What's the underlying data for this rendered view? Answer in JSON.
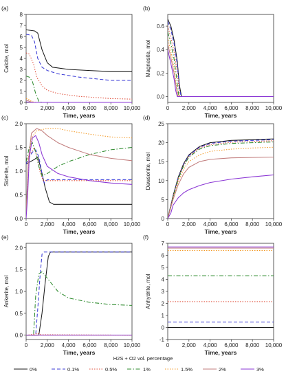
{
  "legend": {
    "title": "H2S + O2 vol. percentage",
    "placement": "bottom-center",
    "entries": [
      {
        "label": "0%",
        "color": "#1a1a1a",
        "dash": "solid"
      },
      {
        "label": "0.1%",
        "color": "#3a3ad6",
        "dash": "dash"
      },
      {
        "label": "0.5%",
        "color": "#e0503c",
        "dash": "dot"
      },
      {
        "label": "1%",
        "color": "#2e8b2e",
        "dash": "dashdot"
      },
      {
        "label": "1.5%",
        "color": "#f39a26",
        "dash": "dot"
      },
      {
        "label": "2%",
        "color": "#c27e7e",
        "dash": "solid"
      },
      {
        "label": "3%",
        "color": "#8a35d4",
        "dash": "solid"
      }
    ]
  },
  "chart_data": [
    {
      "type": "line",
      "panel": "(a)",
      "xlabel": "Time, years",
      "ylabel": "Calcite, mol",
      "xlim": [
        0,
        10000
      ],
      "ylim": [
        0,
        8
      ],
      "yticks": [
        0,
        1,
        2,
        3,
        4,
        5,
        6,
        7,
        8
      ],
      "xticks": [
        0,
        2000,
        4000,
        6000,
        8000,
        10000
      ],
      "xtick_labels": [
        "0",
        "2,000",
        "4,000",
        "6,000",
        "8,000",
        "10,000"
      ],
      "series": [
        {
          "name": "0%",
          "x": [
            0,
            800,
            1100,
            1500,
            2000,
            2500,
            4000,
            6000,
            8000,
            10000
          ],
          "y": [
            6.6,
            6.5,
            6.3,
            4.8,
            3.6,
            3.2,
            3.0,
            2.9,
            2.8,
            2.8
          ]
        },
        {
          "name": "0.1%",
          "x": [
            0,
            500,
            800,
            1100,
            1500,
            2000,
            3000,
            5000,
            8000,
            10000
          ],
          "y": [
            6.2,
            6.1,
            5.5,
            4.0,
            3.2,
            2.9,
            2.6,
            2.3,
            2.0,
            2.0
          ]
        },
        {
          "name": "0.5%",
          "x": [
            0,
            300,
            700,
            1000,
            1500,
            2000,
            3000,
            5000,
            8000,
            10000
          ],
          "y": [
            4.5,
            4.4,
            3.5,
            2.3,
            1.5,
            1.1,
            0.8,
            0.55,
            0.35,
            0.3
          ]
        },
        {
          "name": "1%",
          "x": [
            0,
            300,
            600,
            900,
            1200,
            1500,
            2000,
            10000
          ],
          "y": [
            2.4,
            2.3,
            1.9,
            0.8,
            0.1,
            0.0,
            0.0,
            0.0
          ]
        },
        {
          "name": "1.5%",
          "x": [
            0,
            200,
            400,
            700,
            1000,
            10000
          ],
          "y": [
            0.35,
            0.3,
            0.15,
            0.03,
            0.0,
            0.0
          ]
        },
        {
          "name": "2%",
          "x": [
            0,
            200,
            400,
            700,
            10000
          ],
          "y": [
            0.2,
            0.15,
            0.05,
            0.0,
            0.0
          ]
        },
        {
          "name": "3%",
          "x": [
            0,
            200,
            500,
            10000
          ],
          "y": [
            0.05,
            0.03,
            0.0,
            0.0
          ]
        }
      ]
    },
    {
      "type": "line",
      "panel": "(b)",
      "xlabel": "Time, years",
      "ylabel": "Magnesite, mol",
      "xlim": [
        0,
        10000
      ],
      "ylim": [
        -0.05,
        0.7
      ],
      "yticks": [
        0,
        0.2,
        0.4,
        0.6
      ],
      "ytick_labels": [
        "0.0",
        "0.2",
        "0.4",
        "0.6"
      ],
      "xticks": [
        0,
        2000,
        4000,
        6000,
        8000,
        10000
      ],
      "xtick_labels": [
        "0",
        "2,000",
        "4,000",
        "6,000",
        "8,000",
        "10,000"
      ],
      "series": [
        {
          "name": "0%",
          "x": [
            0,
            300,
            600,
            900,
            1100,
            1300,
            10000
          ],
          "y": [
            0.66,
            0.6,
            0.48,
            0.3,
            0.1,
            0.0,
            0.0
          ]
        },
        {
          "name": "0.1%",
          "x": [
            0,
            300,
            600,
            900,
            1100,
            1250,
            10000
          ],
          "y": [
            0.64,
            0.57,
            0.45,
            0.27,
            0.08,
            0.0,
            0.0
          ]
        },
        {
          "name": "0.5%",
          "x": [
            0,
            300,
            600,
            900,
            1150,
            10000
          ],
          "y": [
            0.6,
            0.5,
            0.38,
            0.2,
            0.0,
            0.0
          ]
        },
        {
          "name": "1%",
          "x": [
            0,
            300,
            600,
            850,
            1050,
            10000
          ],
          "y": [
            0.55,
            0.45,
            0.32,
            0.15,
            0.0,
            0.0
          ]
        },
        {
          "name": "1.5%",
          "x": [
            0,
            300,
            600,
            800,
            1000,
            10000
          ],
          "y": [
            0.5,
            0.38,
            0.25,
            0.1,
            0.0,
            0.0
          ]
        },
        {
          "name": "2%",
          "x": [
            0,
            300,
            600,
            800,
            950,
            10000
          ],
          "y": [
            0.45,
            0.33,
            0.2,
            0.08,
            0.0,
            0.0
          ]
        },
        {
          "name": "3%",
          "x": [
            0,
            300,
            600,
            750,
            900,
            10000
          ],
          "y": [
            0.4,
            0.28,
            0.15,
            0.05,
            0.0,
            0.0
          ]
        }
      ]
    },
    {
      "type": "line",
      "panel": "(c)",
      "xlabel": "Time, years",
      "ylabel": "Siderite, mol",
      "xlim": [
        0,
        10000
      ],
      "ylim": [
        0,
        2.0
      ],
      "yticks": [
        0,
        0.5,
        1.0,
        1.5,
        2.0
      ],
      "ytick_labels": [
        "0.0",
        "0.5",
        "1.0",
        "1.5",
        "2.0"
      ],
      "xticks": [
        0,
        2000,
        4000,
        6000,
        8000,
        10000
      ],
      "xtick_labels": [
        "0",
        "2,000",
        "4,000",
        "6,000",
        "8,000",
        "10,000"
      ],
      "series": [
        {
          "name": "0%",
          "x": [
            0,
            400,
            800,
            1100,
            1400,
            1800,
            2200,
            2600,
            4000,
            6000,
            8000,
            10000
          ],
          "y": [
            1.15,
            1.2,
            1.25,
            1.3,
            1.05,
            0.65,
            0.35,
            0.3,
            0.3,
            0.3,
            0.3,
            0.3
          ]
        },
        {
          "name": "0.1%",
          "x": [
            0,
            300,
            600,
            900,
            1200,
            1500,
            1700,
            2000,
            3000,
            5000,
            8000,
            10000
          ],
          "y": [
            1.15,
            1.3,
            1.4,
            1.45,
            1.3,
            0.95,
            0.75,
            0.82,
            0.82,
            0.82,
            0.82,
            0.82
          ]
        },
        {
          "name": "0.5%",
          "x": [
            0,
            200,
            500,
            800,
            1000,
            1300,
            1600,
            2000,
            10000
          ],
          "y": [
            1.2,
            1.3,
            1.4,
            1.5,
            1.3,
            1.0,
            0.8,
            0.8,
            0.8
          ]
        },
        {
          "name": "1%",
          "x": [
            0,
            300,
            600,
            900,
            1200,
            1500,
            2000,
            3000,
            4000,
            6000,
            8000,
            10000
          ],
          "y": [
            1.2,
            1.5,
            1.6,
            1.4,
            1.1,
            0.9,
            0.95,
            1.1,
            1.2,
            1.35,
            1.45,
            1.5
          ]
        },
        {
          "name": "1.5%",
          "x": [
            0,
            200,
            500,
            1000,
            2000,
            3000,
            4000,
            6000,
            8000,
            10000
          ],
          "y": [
            0.1,
            1.0,
            1.7,
            1.85,
            1.9,
            1.9,
            1.85,
            1.78,
            1.72,
            1.7
          ]
        },
        {
          "name": "2%",
          "x": [
            0,
            200,
            500,
            1000,
            1500,
            2000,
            3000,
            4000,
            6000,
            8000,
            10000
          ],
          "y": [
            0.1,
            1.2,
            1.8,
            1.9,
            1.85,
            1.75,
            1.6,
            1.5,
            1.35,
            1.27,
            1.22
          ]
        },
        {
          "name": "3%",
          "x": [
            0,
            150,
            300,
            600,
            900,
            1200,
            1500,
            2000,
            3000,
            4000,
            6000,
            8000,
            10000
          ],
          "y": [
            0.0,
            0.5,
            1.3,
            1.7,
            1.75,
            1.6,
            1.35,
            1.1,
            0.95,
            0.88,
            0.8,
            0.75,
            0.72
          ]
        }
      ]
    },
    {
      "type": "line",
      "panel": "(d)",
      "xlabel": "Time, years",
      "ylabel": "Dawsonite, mol",
      "xlim": [
        0,
        10000
      ],
      "ylim": [
        0,
        25
      ],
      "yticks": [
        0,
        5,
        10,
        15,
        20,
        25
      ],
      "xticks": [
        0,
        2000,
        4000,
        6000,
        8000,
        10000
      ],
      "xtick_labels": [
        "0",
        "2,000",
        "4,000",
        "6,000",
        "8,000",
        "10,000"
      ],
      "series": [
        {
          "name": "0%",
          "x": [
            0,
            500,
            1000,
            1500,
            2000,
            3000,
            4000,
            6000,
            8000,
            10000
          ],
          "y": [
            0,
            6,
            11,
            14.5,
            16.8,
            19,
            20,
            20.6,
            20.8,
            21
          ]
        },
        {
          "name": "0.1%",
          "x": [
            0,
            500,
            1000,
            1500,
            2000,
            3000,
            4000,
            6000,
            8000,
            10000
          ],
          "y": [
            0,
            5.8,
            10.8,
            14.3,
            16.6,
            18.8,
            19.8,
            20.4,
            20.6,
            20.8
          ]
        },
        {
          "name": "0.5%",
          "x": [
            0,
            500,
            1000,
            1500,
            2000,
            3000,
            4000,
            6000,
            8000,
            10000
          ],
          "y": [
            0,
            5.7,
            10.6,
            14.1,
            16.4,
            18.6,
            19.5,
            20.1,
            20.3,
            20.5
          ]
        },
        {
          "name": "1%",
          "x": [
            0,
            500,
            1000,
            1500,
            2000,
            3000,
            4000,
            6000,
            8000,
            10000
          ],
          "y": [
            0,
            5.6,
            10.4,
            13.9,
            16.2,
            18.3,
            19.2,
            19.8,
            20.0,
            20.2
          ]
        },
        {
          "name": "1.5%",
          "x": [
            0,
            500,
            1000,
            1500,
            2000,
            3000,
            4000,
            6000,
            8000,
            10000
          ],
          "y": [
            0,
            5.4,
            9.8,
            13,
            15,
            16.8,
            17.7,
            18.3,
            18.6,
            18.8
          ]
        },
        {
          "name": "2%",
          "x": [
            0,
            500,
            1000,
            1500,
            2000,
            3000,
            4000,
            6000,
            8000,
            10000
          ],
          "y": [
            0,
            5,
            9,
            11.8,
            13.5,
            15,
            15.6,
            16,
            16.1,
            16.2
          ]
        },
        {
          "name": "3%",
          "x": [
            0,
            300,
            500,
            1000,
            1500,
            2000,
            3000,
            4000,
            6000,
            8000,
            10000
          ],
          "y": [
            0,
            1.5,
            3.5,
            5.5,
            6.8,
            7.6,
            8.7,
            9.5,
            10.4,
            11,
            11.5
          ]
        }
      ]
    },
    {
      "type": "line",
      "panel": "(e)",
      "xlabel": "Time, years",
      "ylabel": "Ankerite, mol",
      "xlim": [
        0,
        10000
      ],
      "ylim": [
        -0.1,
        2.1
      ],
      "yticks": [
        0,
        0.5,
        1.0,
        1.5,
        2.0
      ],
      "ytick_labels": [
        "0.0",
        "0.5",
        "1.0",
        "1.5",
        "2.0"
      ],
      "xticks": [
        0,
        2000,
        4000,
        6000,
        8000,
        10000
      ],
      "xtick_labels": [
        "0",
        "2,000",
        "4,000",
        "6,000",
        "8,000",
        "10,000"
      ],
      "series": [
        {
          "name": "0%",
          "x": [
            0,
            1200,
            1500,
            1800,
            2100,
            2300,
            4000,
            6000,
            8000,
            10000
          ],
          "y": [
            0,
            0,
            0.5,
            1.2,
            1.8,
            1.9,
            1.9,
            1.9,
            1.9,
            1.9
          ]
        },
        {
          "name": "0.1%",
          "x": [
            0,
            900,
            1100,
            1300,
            1500,
            1700,
            3000,
            6000,
            10000
          ],
          "y": [
            0,
            0,
            0.6,
            1.3,
            1.85,
            1.9,
            1.9,
            1.9,
            1.9
          ]
        },
        {
          "name": "0.5%",
          "x": [
            0,
            800,
            1100,
            1400,
            10000
          ],
          "y": [
            0.0,
            0.02,
            0.04,
            0.01,
            0.0
          ]
        },
        {
          "name": "1%",
          "x": [
            0,
            700,
            900,
            1200,
            1500,
            2000,
            3000,
            4000,
            6000,
            8000,
            10000
          ],
          "y": [
            0,
            0,
            0.9,
            1.4,
            1.45,
            1.3,
            1.0,
            0.85,
            0.75,
            0.7,
            0.68
          ]
        },
        {
          "name": "1.5%",
          "x": [
            0,
            10000
          ],
          "y": [
            0.0,
            0.0
          ]
        },
        {
          "name": "2%",
          "x": [
            0,
            10000
          ],
          "y": [
            0.0,
            0.0
          ]
        },
        {
          "name": "3%",
          "x": [
            0,
            10000
          ],
          "y": [
            0.0,
            0.0
          ]
        }
      ]
    },
    {
      "type": "line",
      "panel": "(f)",
      "xlabel": "Time, years",
      "ylabel": "Anhydrite, mol",
      "xlim": [
        0,
        10000
      ],
      "ylim": [
        -1,
        7
      ],
      "yticks": [
        -1,
        0,
        1,
        2,
        3,
        4,
        5,
        6,
        7
      ],
      "xticks": [
        0,
        2000,
        4000,
        6000,
        8000,
        10000
      ],
      "xtick_labels": [
        "0",
        "2,000",
        "4,000",
        "6,000",
        "8,000",
        "10,000"
      ],
      "series": [
        {
          "name": "0%",
          "x": [
            0,
            10000
          ],
          "y": [
            0.0,
            0.0
          ]
        },
        {
          "name": "0.1%",
          "x": [
            0,
            10000
          ],
          "y": [
            0.45,
            0.45
          ]
        },
        {
          "name": "0.5%",
          "x": [
            0,
            10000
          ],
          "y": [
            2.15,
            2.15
          ]
        },
        {
          "name": "1%",
          "x": [
            0,
            10000
          ],
          "y": [
            4.3,
            4.3
          ]
        },
        {
          "name": "1.5%",
          "x": [
            0,
            10000
          ],
          "y": [
            6.4,
            6.4
          ]
        },
        {
          "name": "2%",
          "x": [
            0,
            10000
          ],
          "y": [
            6.6,
            6.6
          ]
        },
        {
          "name": "3%",
          "x": [
            0,
            10000
          ],
          "y": [
            6.7,
            6.7
          ]
        }
      ]
    }
  ]
}
